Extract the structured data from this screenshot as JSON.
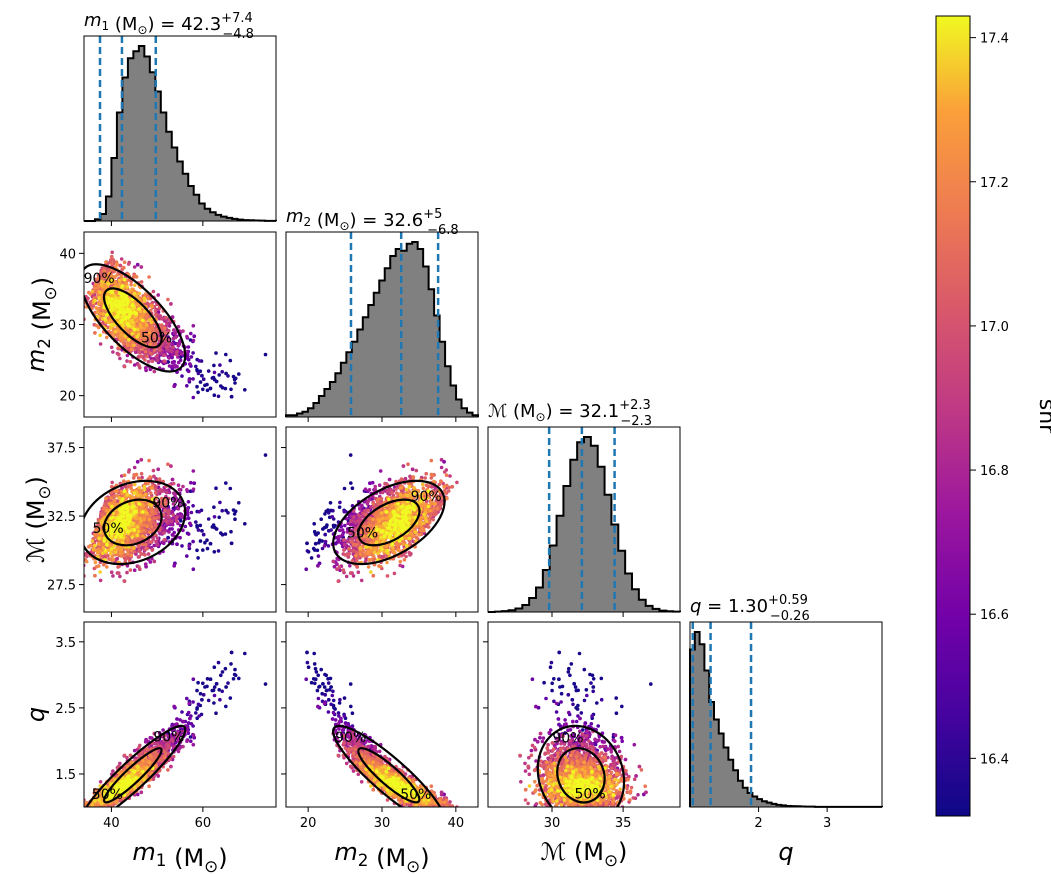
{
  "chart_data": {
    "type": "corner",
    "colormap": "plasma",
    "colorbar": {
      "label": "snr",
      "min": 16.32,
      "max": 17.43,
      "ticks": [
        "16.4",
        "16.6",
        "16.8",
        "17.0",
        "17.2",
        "17.4"
      ]
    },
    "parameters": [
      {
        "key": "m1",
        "symbol": "m",
        "sub": "1",
        "unit": "(M",
        "unit_sub": "⊙",
        "unit_close": ")",
        "range": [
          34,
          76
        ],
        "ticks": [
          "40",
          "60"
        ],
        "tick_values": [
          40,
          60
        ],
        "median": 42.3,
        "plus": "+7.4",
        "minus": "−4.8",
        "value_text": "42.3",
        "quantiles": [
          37.5,
          42.3,
          49.7
        ]
      },
      {
        "key": "m2",
        "symbol": "m",
        "sub": "2",
        "unit": "(M",
        "unit_sub": "⊙",
        "unit_close": ")",
        "range": [
          17,
          43
        ],
        "ticks": [
          "20",
          "30",
          "40"
        ],
        "tick_values": [
          20,
          30,
          40
        ],
        "median": 32.6,
        "plus": "+5",
        "minus": "−6.8",
        "value_text": "32.6",
        "quantiles": [
          25.8,
          32.6,
          37.6
        ]
      },
      {
        "key": "mc",
        "symbol": "ℳ",
        "sub": "",
        "unit": "(M",
        "unit_sub": "⊙",
        "unit_close": ")",
        "range": [
          25.5,
          39.0
        ],
        "ticks": [
          "27.5",
          "32.5",
          "37.5"
        ],
        "tick_values": [
          27.5,
          32.5,
          37.5
        ],
        "x_ticks": [
          "30",
          "35"
        ],
        "x_tick_values": [
          30,
          35
        ],
        "median": 32.1,
        "plus": "+2.3",
        "minus": "−2.3",
        "value_text": "32.1",
        "quantiles": [
          29.8,
          32.1,
          34.4
        ]
      },
      {
        "key": "q",
        "symbol": "q",
        "sub": "",
        "unit": "",
        "unit_sub": "",
        "unit_close": "",
        "range": [
          1.0,
          3.8
        ],
        "ticks": [
          "1.5",
          "2.5",
          "3.5"
        ],
        "tick_values": [
          1.5,
          2.5,
          3.5
        ],
        "x_ticks": [
          "2",
          "3"
        ],
        "x_tick_values": [
          2,
          3
        ],
        "median": 1.3,
        "plus": "+0.59",
        "minus": "−0.26",
        "value_text": "1.30",
        "quantiles": [
          1.04,
          1.3,
          1.89
        ]
      }
    ],
    "contour_labels": [
      "50%",
      "90%"
    ],
    "histograms": {
      "m1": [
        0,
        0,
        0.01,
        0.04,
        0.14,
        0.36,
        0.62,
        0.82,
        0.93,
        0.97,
        1.0,
        0.94,
        0.85,
        0.74,
        0.62,
        0.51,
        0.42,
        0.34,
        0.27,
        0.2,
        0.15,
        0.1,
        0.07,
        0.05,
        0.035,
        0.025,
        0.018,
        0.012,
        0.008,
        0.005,
        0.004,
        0.003,
        0.002,
        0.001,
        0.001
      ],
      "m2": [
        0.01,
        0.01,
        0.02,
        0.03,
        0.05,
        0.08,
        0.12,
        0.16,
        0.2,
        0.25,
        0.31,
        0.37,
        0.43,
        0.5,
        0.57,
        0.64,
        0.71,
        0.78,
        0.85,
        0.92,
        0.96,
        0.95,
        0.99,
        1.0,
        0.96,
        0.86,
        0.73,
        0.58,
        0.43,
        0.29,
        0.18,
        0.1,
        0.05,
        0.025,
        0.01
      ],
      "mc": [
        0,
        0.002,
        0.005,
        0.01,
        0.02,
        0.04,
        0.08,
        0.14,
        0.24,
        0.38,
        0.55,
        0.72,
        0.87,
        0.97,
        1.0,
        0.95,
        0.83,
        0.67,
        0.5,
        0.35,
        0.22,
        0.13,
        0.07,
        0.035,
        0.018,
        0.008,
        0.004,
        0.002
      ],
      "q": [
        0.9,
        1.0,
        0.93,
        0.78,
        0.6,
        0.5,
        0.42,
        0.34,
        0.27,
        0.21,
        0.15,
        0.11,
        0.08,
        0.06,
        0.045,
        0.033,
        0.025,
        0.018,
        0.012,
        0.009,
        0.006,
        0.005,
        0.004,
        0.003,
        0.002,
        0.002,
        0.001,
        0.001,
        0.001,
        0.001,
        0.001,
        0.001,
        0.001,
        0.001,
        0.001,
        0.001,
        0.001,
        0.001,
        0.001,
        0.001
      ]
    }
  }
}
